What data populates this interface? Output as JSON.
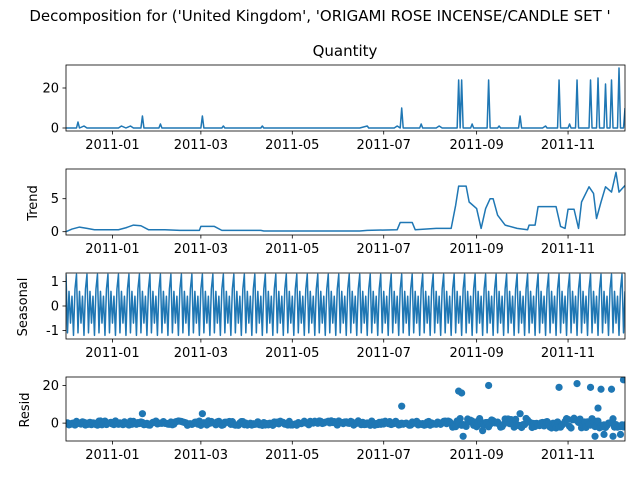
{
  "figure": {
    "suptitle": "Decomposition for ('United Kingdom', 'ORIGAMI ROSE INCENSE/CANDLE SET '"
  },
  "colors": {
    "series": "#1f77b4",
    "axis": "#000000"
  },
  "chart_data": [
    {
      "type": "line",
      "title": "Quantity",
      "ylabel": "",
      "xlim": [
        "2010-12-01",
        "2011-12-09"
      ],
      "ylim": [
        -1.5,
        31.5
      ],
      "yticks": [
        0,
        20
      ],
      "x_ticks": [
        "2011-01",
        "2011-03",
        "2011-05",
        "2011-07",
        "2011-09",
        "2011-11"
      ],
      "points": [
        [
          "2010-12-01",
          0
        ],
        [
          "2010-12-08",
          0
        ],
        [
          "2010-12-09",
          3
        ],
        [
          "2010-12-10",
          0
        ],
        [
          "2010-12-13",
          1
        ],
        [
          "2010-12-15",
          0
        ],
        [
          "2011-01-05",
          0
        ],
        [
          "2011-01-07",
          1
        ],
        [
          "2011-01-10",
          0
        ],
        [
          "2011-01-13",
          1
        ],
        [
          "2011-01-15",
          0
        ],
        [
          "2011-01-20",
          0
        ],
        [
          "2011-01-21",
          6
        ],
        [
          "2011-01-22",
          0
        ],
        [
          "2011-02-01",
          0
        ],
        [
          "2011-02-02",
          2
        ],
        [
          "2011-02-03",
          0
        ],
        [
          "2011-02-20",
          0
        ],
        [
          "2011-03-01",
          0
        ],
        [
          "2011-03-02",
          6
        ],
        [
          "2011-03-03",
          0
        ],
        [
          "2011-03-15",
          0
        ],
        [
          "2011-03-16",
          1
        ],
        [
          "2011-03-17",
          0
        ],
        [
          "2011-04-10",
          0
        ],
        [
          "2011-04-11",
          1
        ],
        [
          "2011-04-12",
          0
        ],
        [
          "2011-06-15",
          0
        ],
        [
          "2011-06-20",
          1
        ],
        [
          "2011-06-21",
          0
        ],
        [
          "2011-07-08",
          0
        ],
        [
          "2011-07-10",
          1
        ],
        [
          "2011-07-12",
          0
        ],
        [
          "2011-07-13",
          10
        ],
        [
          "2011-07-14",
          0
        ],
        [
          "2011-07-25",
          0
        ],
        [
          "2011-07-26",
          2
        ],
        [
          "2011-07-27",
          0
        ],
        [
          "2011-08-05",
          0
        ],
        [
          "2011-08-07",
          1
        ],
        [
          "2011-08-09",
          0
        ],
        [
          "2011-08-19",
          0
        ],
        [
          "2011-08-20",
          24
        ],
        [
          "2011-08-21",
          0
        ],
        [
          "2011-08-22",
          24
        ],
        [
          "2011-08-23",
          0
        ],
        [
          "2011-08-28",
          0
        ],
        [
          "2011-08-29",
          2
        ],
        [
          "2011-08-30",
          0
        ],
        [
          "2011-09-08",
          0
        ],
        [
          "2011-09-09",
          24
        ],
        [
          "2011-09-10",
          0
        ],
        [
          "2011-09-15",
          0
        ],
        [
          "2011-09-16",
          1
        ],
        [
          "2011-09-17",
          0
        ],
        [
          "2011-09-29",
          0
        ],
        [
          "2011-09-30",
          6
        ],
        [
          "2011-10-01",
          0
        ],
        [
          "2011-10-15",
          0
        ],
        [
          "2011-10-17",
          1
        ],
        [
          "2011-10-18",
          0
        ],
        [
          "2011-10-25",
          0
        ],
        [
          "2011-10-26",
          24
        ],
        [
          "2011-10-27",
          0
        ],
        [
          "2011-11-01",
          0
        ],
        [
          "2011-11-02",
          2
        ],
        [
          "2011-11-03",
          0
        ],
        [
          "2011-11-06",
          0
        ],
        [
          "2011-11-07",
          24
        ],
        [
          "2011-11-08",
          0
        ],
        [
          "2011-11-15",
          0
        ],
        [
          "2011-11-16",
          24
        ],
        [
          "2011-11-17",
          0
        ],
        [
          "2011-11-20",
          0
        ],
        [
          "2011-11-21",
          25
        ],
        [
          "2011-11-22",
          0
        ],
        [
          "2011-11-25",
          0
        ],
        [
          "2011-11-26",
          22
        ],
        [
          "2011-11-27",
          0
        ],
        [
          "2011-11-29",
          0
        ],
        [
          "2011-11-30",
          24
        ],
        [
          "2011-12-01",
          0
        ],
        [
          "2011-12-04",
          0
        ],
        [
          "2011-12-05",
          30
        ],
        [
          "2011-12-06",
          0
        ],
        [
          "2011-12-08",
          0
        ],
        [
          "2011-12-09",
          10
        ]
      ]
    },
    {
      "type": "line",
      "title": "",
      "ylabel": "Trend",
      "xlim": [
        "2010-12-01",
        "2011-12-09"
      ],
      "ylim": [
        -0.5,
        9.5
      ],
      "yticks": [
        0,
        5
      ],
      "x_ticks": [
        "2011-01",
        "2011-03",
        "2011-05",
        "2011-07",
        "2011-09",
        "2011-11"
      ],
      "points": [
        [
          "2010-12-01",
          0
        ],
        [
          "2010-12-05",
          0.4
        ],
        [
          "2010-12-10",
          0.7
        ],
        [
          "2010-12-15",
          0.5
        ],
        [
          "2010-12-20",
          0.3
        ],
        [
          "2011-01-05",
          0.3
        ],
        [
          "2011-01-10",
          0.6
        ],
        [
          "2011-01-15",
          1.0
        ],
        [
          "2011-01-20",
          0.9
        ],
        [
          "2011-01-25",
          0.3
        ],
        [
          "2011-02-05",
          0.3
        ],
        [
          "2011-02-15",
          0.2
        ],
        [
          "2011-02-28",
          0.2
        ],
        [
          "2011-03-01",
          0.8
        ],
        [
          "2011-03-10",
          0.8
        ],
        [
          "2011-03-15",
          0.2
        ],
        [
          "2011-04-10",
          0.2
        ],
        [
          "2011-04-12",
          0.1
        ],
        [
          "2011-06-15",
          0.1
        ],
        [
          "2011-06-20",
          0.2
        ],
        [
          "2011-07-10",
          0.3
        ],
        [
          "2011-07-12",
          1.4
        ],
        [
          "2011-07-20",
          1.4
        ],
        [
          "2011-07-22",
          0.3
        ],
        [
          "2011-08-05",
          0.5
        ],
        [
          "2011-08-15",
          0.5
        ],
        [
          "2011-08-18",
          4.0
        ],
        [
          "2011-08-20",
          6.9
        ],
        [
          "2011-08-25",
          6.9
        ],
        [
          "2011-08-27",
          4.5
        ],
        [
          "2011-09-01",
          3.5
        ],
        [
          "2011-09-04",
          0.5
        ],
        [
          "2011-09-07",
          3.5
        ],
        [
          "2011-09-10",
          5.0
        ],
        [
          "2011-09-12",
          5.0
        ],
        [
          "2011-09-15",
          2.5
        ],
        [
          "2011-09-20",
          1.0
        ],
        [
          "2011-09-28",
          0.5
        ],
        [
          "2011-10-05",
          0.3
        ],
        [
          "2011-10-06",
          1.0
        ],
        [
          "2011-10-10",
          1.0
        ],
        [
          "2011-10-12",
          3.8
        ],
        [
          "2011-10-20",
          3.8
        ],
        [
          "2011-10-24",
          3.8
        ],
        [
          "2011-10-27",
          0.8
        ],
        [
          "2011-10-30",
          0.5
        ],
        [
          "2011-11-01",
          3.4
        ],
        [
          "2011-11-05",
          3.4
        ],
        [
          "2011-11-08",
          0.5
        ],
        [
          "2011-11-10",
          4.5
        ],
        [
          "2011-11-15",
          6.8
        ],
        [
          "2011-11-18",
          5.8
        ],
        [
          "2011-11-20",
          2.0
        ],
        [
          "2011-11-23",
          4.5
        ],
        [
          "2011-11-26",
          6.8
        ],
        [
          "2011-11-30",
          6.0
        ],
        [
          "2011-12-03",
          9.0
        ],
        [
          "2011-12-05",
          6.0
        ],
        [
          "2011-12-07",
          6.5
        ],
        [
          "2011-12-09",
          7.0
        ]
      ]
    },
    {
      "type": "line",
      "title": "",
      "ylabel": "Seasonal",
      "xlim": [
        "2010-12-01",
        "2011-12-09"
      ],
      "ylim": [
        -1.35,
        1.35
      ],
      "yticks": [
        -1,
        0,
        1
      ],
      "x_ticks": [
        "2011-01",
        "2011-03",
        "2011-05",
        "2011-07",
        "2011-09",
        "2011-11"
      ],
      "seasonal_pattern": [
        1.3,
        -1.1,
        0.6,
        -0.7,
        0.4,
        -1.2,
        0.7
      ],
      "period_days": 7,
      "start": "2010-12-01",
      "end": "2011-12-09"
    },
    {
      "type": "scatter",
      "title": "",
      "ylabel": "Resid",
      "xlim": [
        "2010-12-01",
        "2011-12-09"
      ],
      "ylim": [
        -9.5,
        24.5
      ],
      "yticks": [
        0,
        20
      ],
      "x_ticks": [
        "2011-01",
        "2011-03",
        "2011-05",
        "2011-07",
        "2011-09",
        "2011-11"
      ],
      "outliers": [
        [
          "2011-01-21",
          5
        ],
        [
          "2011-03-02",
          5
        ],
        [
          "2011-07-13",
          9
        ],
        [
          "2011-08-20",
          17
        ],
        [
          "2011-08-22",
          16
        ],
        [
          "2011-09-09",
          20
        ],
        [
          "2011-09-30",
          5
        ],
        [
          "2011-10-26",
          19
        ],
        [
          "2011-11-07",
          21
        ],
        [
          "2011-11-16",
          19
        ],
        [
          "2011-11-21",
          8
        ],
        [
          "2011-11-23",
          18
        ],
        [
          "2011-11-30",
          18
        ],
        [
          "2011-12-08",
          23
        ],
        [
          "2011-08-23",
          -7
        ],
        [
          "2011-11-25",
          -6
        ],
        [
          "2011-12-01",
          -7
        ],
        [
          "2011-12-06",
          -6
        ],
        [
          "2011-09-05",
          -4
        ],
        [
          "2011-11-19",
          -7
        ]
      ]
    }
  ]
}
